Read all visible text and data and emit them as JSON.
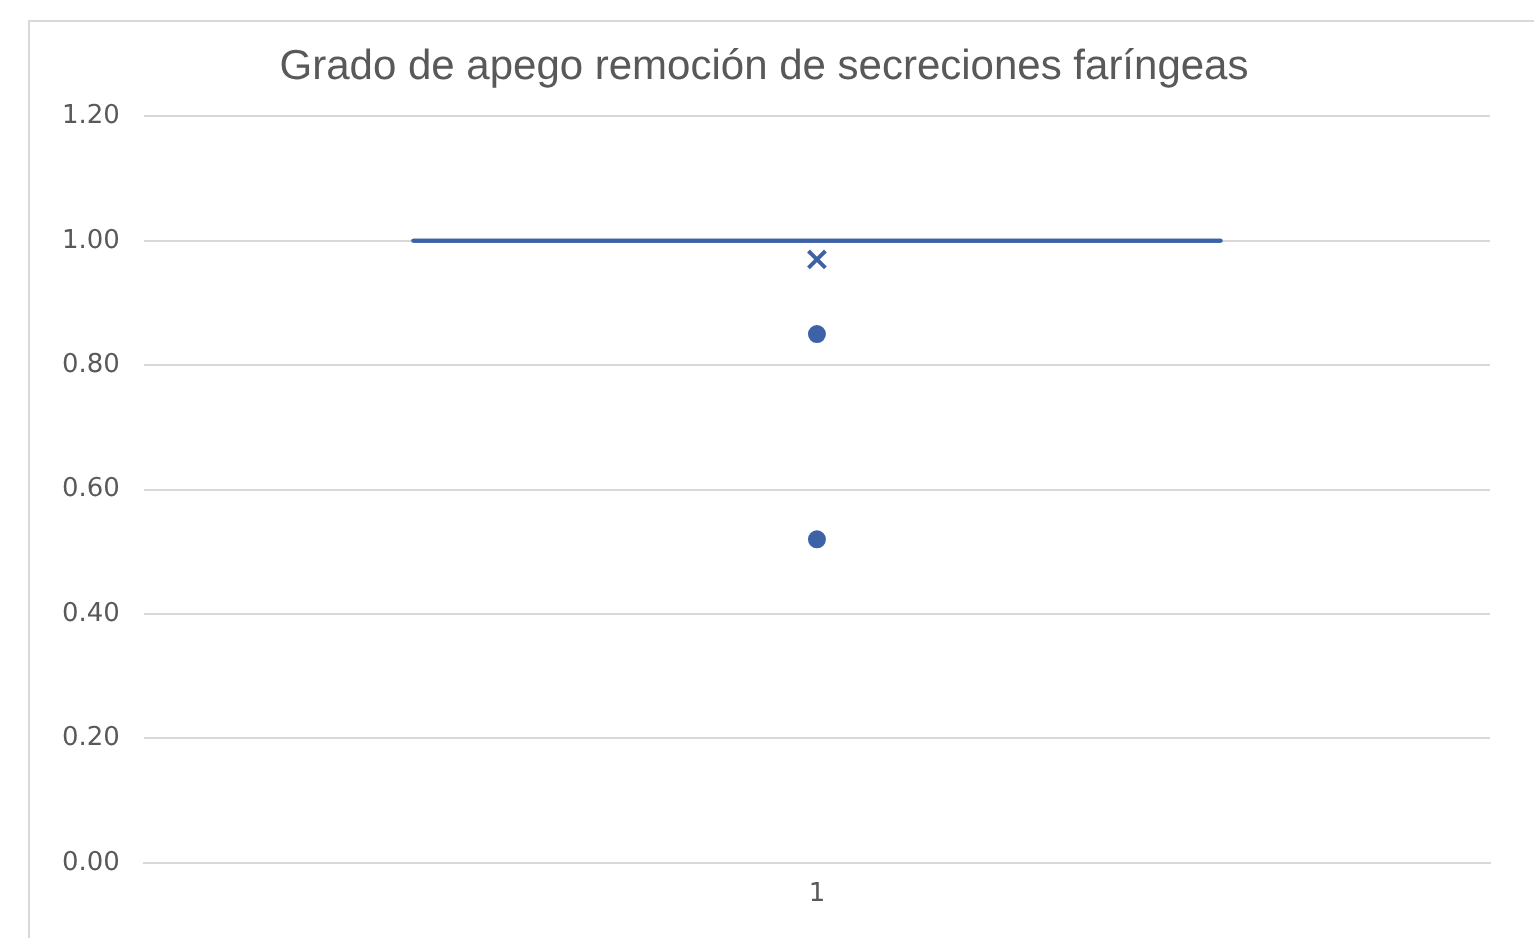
{
  "chart_data": {
    "type": "box",
    "title": "Grado de apego remoción de secreciones faríngeas",
    "categories": [
      "1"
    ],
    "color": "#3d63a6",
    "boxes": [
      {
        "low": 1.0,
        "q1": 1.0,
        "median": 1.0,
        "q3": 1.0,
        "high": 1.0,
        "mean": 0.97,
        "outliers": [
          0.85,
          0.52
        ]
      }
    ],
    "ylim": [
      0,
      1.2
    ],
    "yticks": [
      {
        "value": 0,
        "label": "0.00"
      },
      {
        "value": 0.2,
        "label": "0.20"
      },
      {
        "value": 0.4,
        "label": "0.40"
      },
      {
        "value": 0.6,
        "label": "0.60"
      },
      {
        "value": 0.8,
        "label": "0.80"
      },
      {
        "value": 1.0,
        "label": "1.00"
      },
      {
        "value": 1.2,
        "label": "1.20"
      }
    ],
    "grid": "y",
    "legend": false
  }
}
